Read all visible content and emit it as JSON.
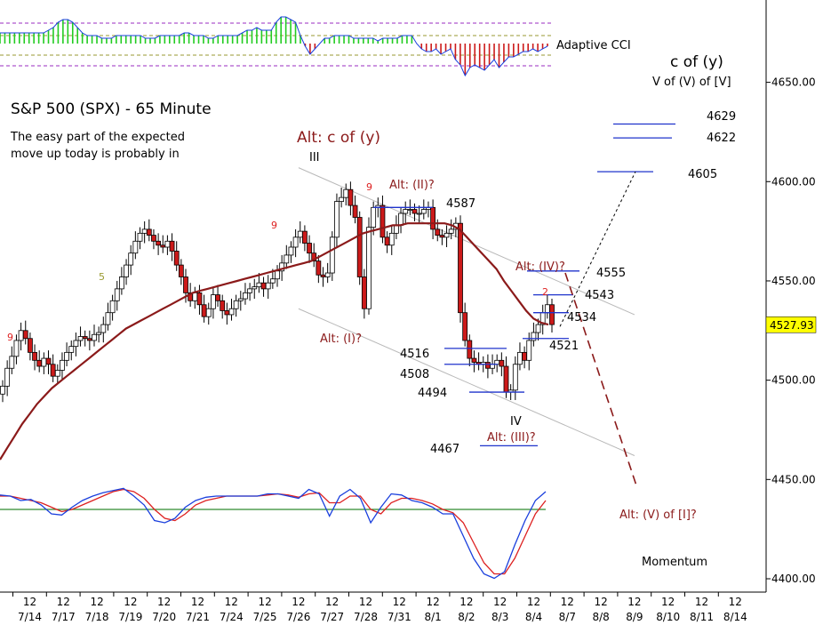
{
  "chart_data": {
    "type": "candlestick",
    "title": "S&P 500 (SPX) - 65 Minute",
    "subtitle_lines": [
      "The easy part of the expected",
      "move up today is probably in"
    ],
    "price_axis": {
      "ylim": [
        4400,
        4682
      ],
      "ticks": [
        4400,
        4450,
        4500,
        4550,
        4600,
        4650
      ],
      "tick_labels": [
        "4400.00",
        "4450.00",
        "4500.00",
        "4550.00",
        "4600.00",
        "4650.00"
      ],
      "last_price": "4527.93"
    },
    "x_axis": {
      "session_tick_label": "12",
      "dates": [
        "7/14",
        "7/17",
        "7/18",
        "7/19",
        "7/20",
        "7/21",
        "7/24",
        "7/25",
        "7/26",
        "7/27",
        "7/28",
        "7/31",
        "8/1",
        "8/2",
        "8/3",
        "8/4",
        "8/7",
        "8/8",
        "8/9",
        "8/10",
        "8/11",
        "8/14"
      ]
    },
    "price_closes_approx": [
      4497,
      4506,
      4512,
      4520,
      4525,
      4521,
      4514,
      4510,
      4507,
      4511,
      4508,
      4502,
      4505,
      4510,
      4514,
      4517,
      4520,
      4522,
      4521,
      4520,
      4523,
      4524,
      4528,
      4534,
      4540,
      4546,
      4552,
      4558,
      4564,
      4570,
      4574,
      4576,
      4573,
      4570,
      4568,
      4567,
      4570,
      4565,
      4558,
      4552,
      4544,
      4540,
      4544,
      4538,
      4532,
      4536,
      4543,
      4540,
      4535,
      4533,
      4536,
      4540,
      4541,
      4544,
      4546,
      4547,
      4549,
      4546,
      4549,
      4551,
      4555,
      4559,
      4563,
      4567,
      4572,
      4575,
      4569,
      4564,
      4560,
      4553,
      4552,
      4554,
      4572,
      4590,
      4592,
      4596,
      4588,
      4582,
      4552,
      4536,
      4577,
      4587,
      4588,
      4572,
      4568,
      4574,
      4578,
      4584,
      4586,
      4586,
      4584,
      4584,
      4586,
      4587,
      4576,
      4573,
      4572,
      4574,
      4576,
      4579,
      4534,
      4520,
      4511,
      4509,
      4508,
      4509,
      4506,
      4508,
      4510,
      4507,
      4494,
      4495,
      4508,
      4514,
      4510,
      4520,
      4524,
      4528,
      4534,
      4538,
      4528
    ],
    "ema_approx": [
      4460,
      4466,
      4472,
      4478,
      4483,
      4488,
      4492,
      4496,
      4499,
      4502,
      4505,
      4508,
      4511,
      4514,
      4517,
      4520,
      4523,
      4526,
      4528,
      4530,
      4532,
      4534,
      4536,
      4538,
      4540,
      4542,
      4544,
      4545,
      4546,
      4547,
      4548,
      4549,
      4550,
      4551,
      4552,
      4553,
      4554,
      4555,
      4556,
      4557,
      4558,
      4559,
      4560,
      4562,
      4564,
      4566,
      4568,
      4570,
      4572,
      4574,
      4575,
      4576,
      4577,
      4578,
      4578,
      4579,
      4579,
      4579,
      4579,
      4579,
      4579,
      4578,
      4576,
      4572,
      4568,
      4564,
      4560,
      4556,
      4550,
      4545,
      4540,
      4535,
      4531,
      4529,
      4528
    ],
    "channel_lines": [
      {
        "from": [
          "7/26",
          4607
        ],
        "to": [
          "8/9",
          4533
        ]
      },
      {
        "from": [
          "7/26",
          4536
        ],
        "to": [
          "8/9",
          4462
        ]
      }
    ],
    "price_labels": [
      {
        "text": "4629",
        "value": 4629
      },
      {
        "text": "4622",
        "value": 4622
      },
      {
        "text": "4605",
        "value": 4605
      },
      {
        "text": "4587",
        "value": 4587
      },
      {
        "text": "4555",
        "value": 4555
      },
      {
        "text": "4543",
        "value": 4543
      },
      {
        "text": "4534",
        "value": 4534
      },
      {
        "text": "4521",
        "value": 4521
      },
      {
        "text": "4516",
        "value": 4516
      },
      {
        "text": "4508",
        "value": 4508
      },
      {
        "text": "4494",
        "value": 4494
      },
      {
        "text": "4467",
        "value": 4467
      }
    ],
    "wave_labels": {
      "alt_c_y": "Alt: c of (y)",
      "III": "III",
      "alt_II": "Alt: (II)?",
      "alt_I": "Alt: (I)?",
      "alt_IV": "Alt: (IV)?",
      "IV": "IV",
      "alt_III": "Alt: (III)?",
      "alt_V": "Alt: (V) of [I]?",
      "c_of_y": "c of (y)",
      "V_of_V": "V of (V) of [V]"
    },
    "count_labels": [
      "9",
      "5",
      "9",
      "9",
      "2"
    ],
    "indicators": {
      "adaptive_cci": {
        "name": "Adaptive CCI",
        "bars_approx": [
          4,
          4,
          4,
          4,
          4,
          4,
          4,
          4,
          4,
          4,
          5,
          6,
          8,
          9,
          9,
          8,
          6,
          4,
          3,
          3,
          3,
          2,
          2,
          2,
          3,
          3,
          3,
          3,
          3,
          3,
          2,
          2,
          2,
          3,
          3,
          3,
          3,
          3,
          4,
          4,
          3,
          3,
          3,
          2,
          2,
          3,
          3,
          3,
          3,
          3,
          4,
          5,
          5,
          6,
          5,
          5,
          5,
          8,
          10,
          10,
          9,
          8,
          3,
          -1,
          -4,
          -2,
          0,
          2,
          2,
          3,
          3,
          3,
          3,
          2,
          2,
          2,
          2,
          2,
          1,
          2,
          2,
          2,
          2,
          3,
          3,
          3,
          0,
          -2,
          -3,
          -3,
          -2,
          -4,
          -3,
          -2,
          -6,
          -8,
          -12,
          -9,
          -8,
          -9,
          -10,
          -8,
          -6,
          -9,
          -7,
          -5,
          -5,
          -4,
          -3,
          -3,
          -2,
          -3,
          -2,
          -1
        ]
      },
      "momentum": {
        "name": "Momentum",
        "blue_approx": [
          0.65,
          0.6,
          0.4,
          0.45,
          0.2,
          -0.2,
          -0.25,
          0.1,
          0.4,
          0.6,
          0.75,
          0.85,
          0.95,
          0.6,
          0.2,
          -0.5,
          -0.6,
          -0.4,
          0.1,
          0.4,
          0.55,
          0.6,
          0.6,
          0.6,
          0.6,
          0.6,
          0.7,
          0.7,
          0.6,
          0.5,
          0.9,
          0.7,
          -0.3,
          0.6,
          0.9,
          0.5,
          -0.6,
          0.1,
          0.7,
          0.65,
          0.4,
          0.3,
          0.1,
          -0.2,
          -0.2,
          -1.2,
          -2.2,
          -2.9,
          -3.1,
          -2.8,
          -1.6,
          -0.5,
          0.4,
          0.8
        ],
        "red_approx": [
          0.6,
          0.6,
          0.5,
          0.4,
          0.3,
          0.1,
          -0.1,
          0.0,
          0.2,
          0.4,
          0.6,
          0.8,
          0.9,
          0.8,
          0.5,
          0.0,
          -0.4,
          -0.5,
          -0.2,
          0.2,
          0.4,
          0.5,
          0.6,
          0.6,
          0.6,
          0.6,
          0.65,
          0.7,
          0.65,
          0.55,
          0.7,
          0.75,
          0.3,
          0.3,
          0.6,
          0.6,
          0.0,
          -0.2,
          0.3,
          0.5,
          0.5,
          0.4,
          0.25,
          0.0,
          -0.15,
          -0.6,
          -1.5,
          -2.4,
          -2.9,
          -2.9,
          -2.2,
          -1.2,
          -0.2,
          0.4
        ]
      }
    },
    "colors": {
      "up_candle": "#ffffff",
      "down_candle": "#cc1a1a",
      "ema": "#8b1a1a",
      "wave_label": "#8b1a1a",
      "target_line": "#1f33cc",
      "channel": "#b8b8b8",
      "momentum_blue": "#1a3fdd",
      "momentum_red": "#dd2020",
      "momentum_zero": "#2e8b2e",
      "cci_up": "#22cc22",
      "cci_down": "#cc1a1a",
      "last_price_bg": "#ffff00"
    }
  }
}
